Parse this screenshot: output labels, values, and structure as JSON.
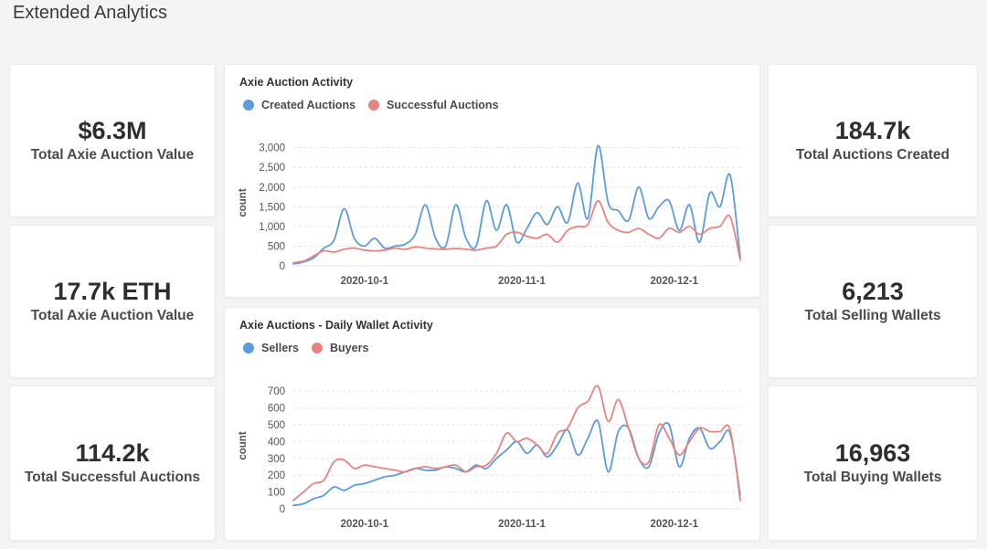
{
  "page": {
    "title": "Extended Analytics"
  },
  "stats": {
    "left": [
      {
        "value": "$6.3M",
        "label": "Total Axie Auction Value"
      },
      {
        "value": "17.7k ETH",
        "label": "Total Axie Auction Value"
      },
      {
        "value": "114.2k",
        "label": "Total Successful Auctions"
      }
    ],
    "right": [
      {
        "value": "184.7k",
        "label": "Total Auctions Created"
      },
      {
        "value": "6,213",
        "label": "Total Selling Wallets"
      },
      {
        "value": "16,963",
        "label": "Total Buying Wallets"
      }
    ]
  },
  "colors": {
    "blue": "#5b9bdf",
    "red": "#e8847f",
    "grid": "#e4e4e4"
  },
  "chart_data": [
    {
      "type": "line",
      "title": "Axie Auction Activity",
      "xlabel": "",
      "ylabel": "count",
      "x_ticks": [
        "2020-10-1",
        "2020-11-1",
        "2020-12-1"
      ],
      "y_ticks": [
        "0",
        "500",
        "1,000",
        "1,500",
        "2,000",
        "2,500",
        "3,000"
      ],
      "ylim": [
        0,
        3200
      ],
      "x": [
        "2020-09-17",
        "2020-09-19",
        "2020-09-21",
        "2020-09-23",
        "2020-09-25",
        "2020-09-27",
        "2020-09-29",
        "2020-10-01",
        "2020-10-03",
        "2020-10-05",
        "2020-10-07",
        "2020-10-09",
        "2020-10-11",
        "2020-10-13",
        "2020-10-15",
        "2020-10-17",
        "2020-10-19",
        "2020-10-21",
        "2020-10-23",
        "2020-10-25",
        "2020-10-27",
        "2020-10-29",
        "2020-10-31",
        "2020-11-02",
        "2020-11-04",
        "2020-11-06",
        "2020-11-08",
        "2020-11-10",
        "2020-11-12",
        "2020-11-14",
        "2020-11-16",
        "2020-11-18",
        "2020-11-20",
        "2020-11-22",
        "2020-11-24",
        "2020-11-26",
        "2020-11-28",
        "2020-11-30",
        "2020-12-02",
        "2020-12-04",
        "2020-12-06",
        "2020-12-08",
        "2020-12-10",
        "2020-12-12",
        "2020-12-14"
      ],
      "legend": "top-left",
      "series": [
        {
          "name": "Created Auctions",
          "color": "#5b9bdf",
          "values": [
            50,
            100,
            200,
            450,
            650,
            1450,
            700,
            500,
            700,
            450,
            500,
            550,
            800,
            1550,
            700,
            500,
            1550,
            700,
            500,
            1650,
            900,
            1550,
            600,
            950,
            1350,
            1050,
            1500,
            1100,
            2100,
            1200,
            3050,
            1600,
            1400,
            1150,
            2000,
            1200,
            1500,
            1650,
            900,
            1550,
            600,
            1850,
            1500,
            2300,
            200
          ]
        },
        {
          "name": "Successful Auctions",
          "color": "#e8847f",
          "values": [
            80,
            120,
            250,
            380,
            350,
            420,
            450,
            400,
            380,
            400,
            450,
            420,
            480,
            450,
            430,
            420,
            440,
            420,
            400,
            450,
            500,
            800,
            850,
            750,
            700,
            800,
            600,
            900,
            1000,
            1050,
            1650,
            1100,
            900,
            850,
            950,
            800,
            700,
            950,
            850,
            1000,
            800,
            950,
            1000,
            1250,
            150
          ]
        }
      ]
    },
    {
      "type": "line",
      "title": "Axie Auctions - Daily Wallet Activity",
      "xlabel": "",
      "ylabel": "count",
      "x_ticks": [
        "2020-10-1",
        "2020-11-1",
        "2020-12-1"
      ],
      "y_ticks": [
        "0",
        "100",
        "200",
        "300",
        "400",
        "500",
        "600",
        "700"
      ],
      "ylim": [
        0,
        750
      ],
      "x": [
        "2020-09-17",
        "2020-09-19",
        "2020-09-21",
        "2020-09-23",
        "2020-09-25",
        "2020-09-27",
        "2020-09-29",
        "2020-10-01",
        "2020-10-03",
        "2020-10-05",
        "2020-10-07",
        "2020-10-09",
        "2020-10-11",
        "2020-10-13",
        "2020-10-15",
        "2020-10-17",
        "2020-10-19",
        "2020-10-21",
        "2020-10-23",
        "2020-10-25",
        "2020-10-27",
        "2020-10-29",
        "2020-10-31",
        "2020-11-02",
        "2020-11-04",
        "2020-11-06",
        "2020-11-08",
        "2020-11-10",
        "2020-11-12",
        "2020-11-14",
        "2020-11-16",
        "2020-11-18",
        "2020-11-20",
        "2020-11-22",
        "2020-11-24",
        "2020-11-26",
        "2020-11-28",
        "2020-11-30",
        "2020-12-02",
        "2020-12-04",
        "2020-12-06",
        "2020-12-08",
        "2020-12-10",
        "2020-12-12",
        "2020-12-14"
      ],
      "legend": "top-left",
      "series": [
        {
          "name": "Sellers",
          "color": "#5b9bdf",
          "values": [
            20,
            30,
            60,
            80,
            130,
            110,
            140,
            150,
            170,
            190,
            200,
            220,
            240,
            230,
            230,
            250,
            240,
            220,
            260,
            240,
            300,
            350,
            400,
            330,
            380,
            310,
            380,
            470,
            320,
            420,
            520,
            220,
            460,
            480,
            300,
            250,
            450,
            500,
            250,
            420,
            480,
            360,
            400,
            450,
            80
          ]
        },
        {
          "name": "Buyers",
          "color": "#e8847f",
          "values": [
            50,
            100,
            150,
            170,
            280,
            290,
            240,
            260,
            250,
            240,
            230,
            220,
            240,
            250,
            240,
            250,
            260,
            220,
            250,
            260,
            330,
            450,
            400,
            420,
            380,
            330,
            450,
            480,
            600,
            640,
            730,
            520,
            650,
            480,
            300,
            280,
            500,
            420,
            320,
            400,
            480,
            460,
            460,
            470,
            50
          ]
        }
      ]
    }
  ]
}
